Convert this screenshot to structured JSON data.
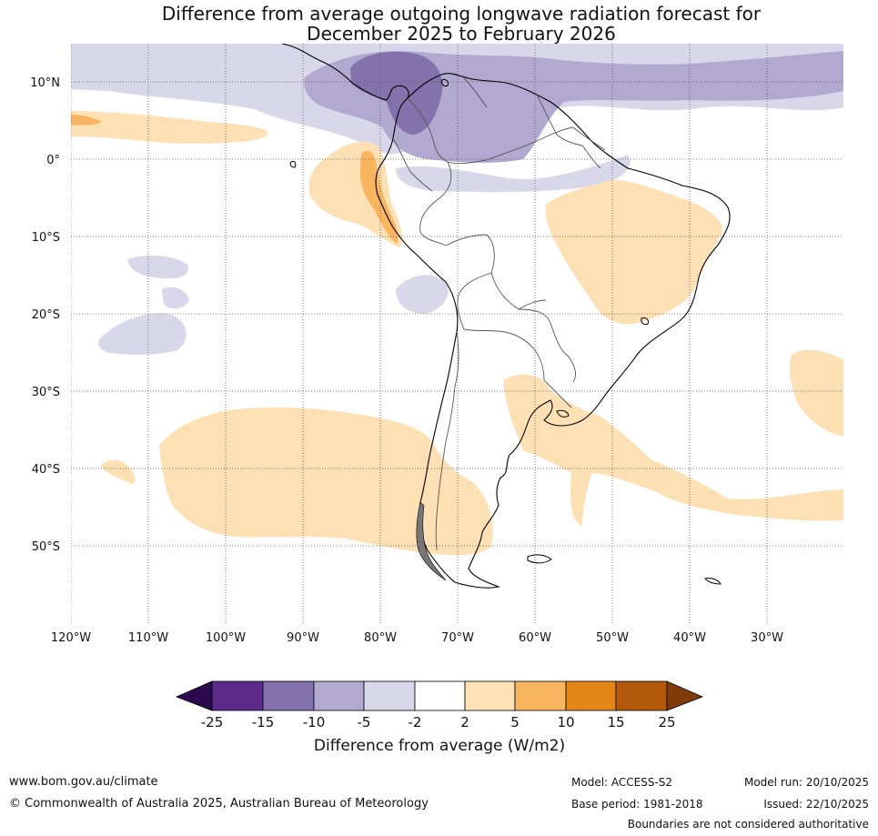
{
  "title": {
    "line1": "Difference from average outgoing longwave radiation forecast for",
    "line2": "December 2025 to February 2026"
  },
  "map": {
    "lat_labels": [
      "10°N",
      "0°",
      "10°S",
      "20°S",
      "30°S",
      "40°S",
      "50°S"
    ],
    "lon_labels": [
      "120°W",
      "110°W",
      "100°W",
      "90°W",
      "80°W",
      "70°W",
      "60°W",
      "50°W",
      "40°W",
      "30°W"
    ],
    "colors": {
      "purple_darkest": "#2d0a4e",
      "purple_dark": "#5b2a8a",
      "purple_mid": "#8472ac",
      "purple_light": "#b1a9d0",
      "purple_faint": "#d8d8ea",
      "neutral": "#ffffff",
      "orange_faint": "#fde0b4",
      "orange_light": "#fab560",
      "orange_mid": "#e38616",
      "orange_dark": "#b2590b",
      "orange_darkest": "#7f3c0a"
    }
  },
  "colorbar": {
    "ticks": [
      "-25",
      "-15",
      "-10",
      "-5",
      "-2",
      "2",
      "5",
      "10",
      "15",
      "25"
    ],
    "label": "Difference from average (W/m2)"
  },
  "footer": {
    "website": "www.bom.gov.au/climate",
    "copyright": "© Commonwealth of Australia 2025, Australian Bureau of Meteorology",
    "model": "Model: ACCESS-S2",
    "base_period": "Base period: 1981-2018",
    "model_run": "Model run: 20/10/2025",
    "issued": "Issued: 22/10/2025",
    "disclaimer": "Boundaries are not considered authoritative"
  }
}
